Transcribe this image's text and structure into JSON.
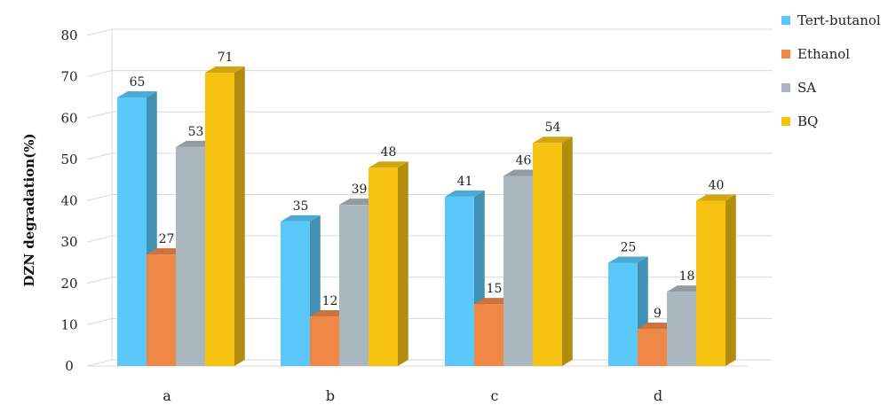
{
  "chart_data": {
    "type": "bar",
    "ylabel": "DZN degradation(%)",
    "ylim": [
      0,
      80
    ],
    "yticks": [
      0,
      10,
      20,
      30,
      40,
      50,
      60,
      70,
      80
    ],
    "categories": [
      "a",
      "b",
      "c",
      "d"
    ],
    "grid": true,
    "legend_position": "right",
    "series": [
      {
        "name": "Tert-butanol",
        "color": "#5bc8fa",
        "values": [
          65,
          35,
          41,
          25
        ]
      },
      {
        "name": "Ethanol",
        "color": "#ef8746",
        "values": [
          27,
          12,
          15,
          9
        ]
      },
      {
        "name": "SA",
        "color": "#aab7bf",
        "values": [
          53,
          39,
          46,
          18
        ]
      },
      {
        "name": "BQ",
        "color": "#f6c313",
        "values": [
          71,
          48,
          54,
          40
        ]
      }
    ]
  }
}
